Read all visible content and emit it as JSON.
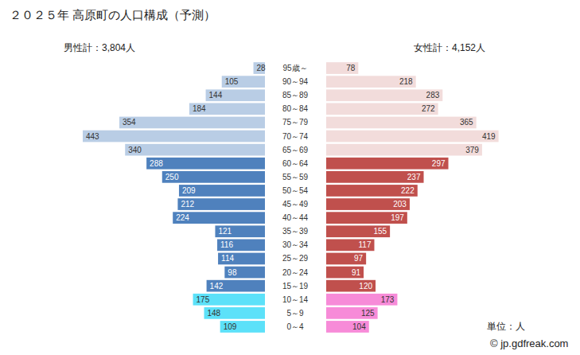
{
  "chart_data": {
    "type": "bar",
    "orientation": "horizontal",
    "title": "２０２５年 高原町の人口構成（予測）",
    "categories": [
      "95歳～",
      "90～94",
      "85～89",
      "80～84",
      "75～79",
      "70～74",
      "65～69",
      "60～64",
      "55～59",
      "50～54",
      "45～49",
      "40～44",
      "35～39",
      "30～34",
      "25～29",
      "20～24",
      "15～19",
      "10～14",
      "5～9",
      "0～4"
    ],
    "series": [
      {
        "name": "男性計：3,804人",
        "values": [
          28,
          105,
          144,
          184,
          354,
          443,
          340,
          288,
          250,
          209,
          212,
          224,
          121,
          116,
          114,
          98,
          142,
          175,
          148,
          109
        ],
        "colors": [
          "#b9cde5",
          "#b9cde5",
          "#b9cde5",
          "#b9cde5",
          "#b9cde5",
          "#b9cde5",
          "#b9cde5",
          "#4f81bd",
          "#4f81bd",
          "#4f81bd",
          "#4f81bd",
          "#4f81bd",
          "#4f81bd",
          "#4f81bd",
          "#4f81bd",
          "#4f81bd",
          "#4f81bd",
          "#5ce1f9",
          "#5ce1f9",
          "#5ce1f9"
        ]
      },
      {
        "name": "女性計：4,152人",
        "values": [
          78,
          218,
          283,
          272,
          365,
          419,
          379,
          297,
          237,
          222,
          203,
          197,
          155,
          117,
          97,
          91,
          120,
          173,
          125,
          104
        ],
        "colors": [
          "#f2dcdb",
          "#f2dcdb",
          "#f2dcdb",
          "#f2dcdb",
          "#f2dcdb",
          "#f2dcdb",
          "#f2dcdb",
          "#c0504d",
          "#c0504d",
          "#c0504d",
          "#c0504d",
          "#c0504d",
          "#c0504d",
          "#c0504d",
          "#c0504d",
          "#c0504d",
          "#c0504d",
          "#f78bd8",
          "#f78bd8",
          "#f78bd8"
        ]
      }
    ],
    "data_labels": true,
    "tick_labels": "y",
    "annotations": [
      "単位：人",
      "© jp.gdfreak.com"
    ]
  }
}
